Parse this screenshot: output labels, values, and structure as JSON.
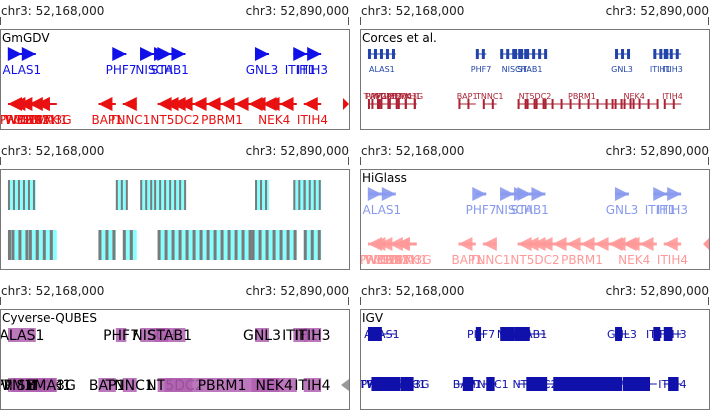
{
  "coords": {
    "start": "chr3: 52,168,000",
    "end": "chr3: 52,890,000"
  },
  "panels": [
    {
      "id": "gmgdv",
      "title": "GmGDV",
      "style": "gmgdv",
      "fwd": "#1010e8",
      "rev": "#e81010"
    },
    {
      "id": "corces",
      "title": "Corces et al.",
      "style": "corces",
      "fwd": "#2244aa",
      "rev": "#aa2233"
    },
    {
      "id": "heat",
      "title": "",
      "style": "heat",
      "fwd": "#7a7a7a",
      "rev": "#88ffff"
    },
    {
      "id": "higlass",
      "title": "HiGlass",
      "style": "higlass",
      "fwd": "#8899ee",
      "rev": "#ff9999"
    },
    {
      "id": "qubes",
      "title": "Cyverse-QUBES",
      "style": "qubes",
      "fwd": "#b060b0",
      "rev": "#999999"
    },
    {
      "id": "igv",
      "title": "IGV",
      "style": "igv",
      "fwd": "#1010aa",
      "rev": "#1010aa"
    }
  ],
  "genes_fwd": [
    {
      "name": "ALAS1",
      "start": 0.02,
      "end": 0.1
    },
    {
      "name": "PHF7",
      "start": 0.33,
      "end": 0.36
    },
    {
      "name": "NISCH",
      "start": 0.4,
      "end": 0.48
    },
    {
      "name": "STAB1",
      "start": 0.44,
      "end": 0.53
    },
    {
      "name": "GNL3",
      "start": 0.73,
      "end": 0.77
    },
    {
      "name": "ITIH1",
      "start": 0.84,
      "end": 0.88
    },
    {
      "name": "ITIH3",
      "start": 0.87,
      "end": 0.92
    }
  ],
  "genes_rev": [
    {
      "name": "TWF2",
      "start": 0.02,
      "end": 0.06
    },
    {
      "name": "WDR82",
      "start": 0.05,
      "end": 0.1
    },
    {
      "name": "GLYCTK",
      "start": 0.08,
      "end": 0.12
    },
    {
      "name": "DNAH1",
      "start": 0.1,
      "end": 0.16
    },
    {
      "name": "BAP1",
      "start": 0.28,
      "end": 0.33
    },
    {
      "name": "PPM1M",
      "start": 0.03,
      "end": 0.08
    },
    {
      "name": "SEMA3G",
      "start": 0.1,
      "end": 0.16
    },
    {
      "name": "TNNC1",
      "start": 0.35,
      "end": 0.39
    },
    {
      "name": "NT5DC2",
      "start": 0.45,
      "end": 0.55
    },
    {
      "name": "PBRM1",
      "start": 0.47,
      "end": 0.8
    },
    {
      "name": "NEK4",
      "start": 0.72,
      "end": 0.85
    },
    {
      "name": "ITIH4",
      "start": 0.87,
      "end": 0.92
    }
  ],
  "rev_label_rows": {
    "gmgdv": [
      "TWF2",
      "WDR82",
      "GLYCTK",
      "SEMA3G",
      "DNAH1",
      "BAP1",
      "TNNC1",
      "NT5DC2",
      "PBRM1",
      "NEK4",
      "ITIH4"
    ],
    "corces": [
      "TWF2",
      "WDR82",
      "GLYCTK",
      "SEMA3G",
      "DNAH1",
      "BAP1",
      "TNNC1",
      "NT5DC2",
      "PBRM1",
      "NEK4",
      "ITIH4"
    ]
  }
}
